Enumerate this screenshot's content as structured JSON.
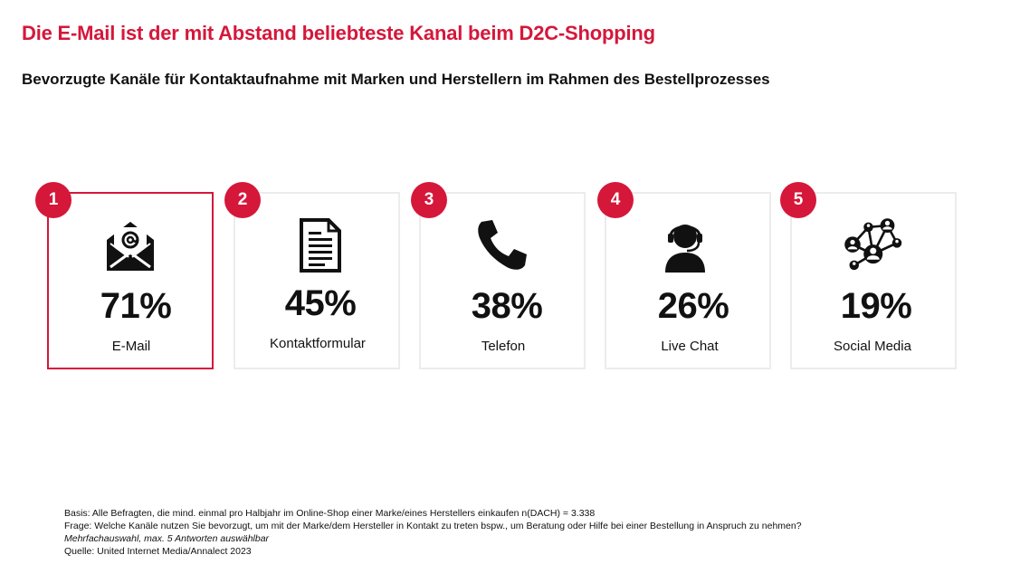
{
  "title": "Die E-Mail ist der mit Abstand beliebteste Kanal beim D2C-Shopping",
  "subtitle": "Bevorzugte Kanäle für Kontaktaufnahme mit Marken und Herstellern im Rahmen des Bestellprozesses",
  "colors": {
    "accent": "#d5173a",
    "card_border": "#ececec",
    "icon": "#111111"
  },
  "chart_data": {
    "type": "table",
    "title": "Bevorzugte Kanäle für Kontaktaufnahme mit Marken und Herstellern im Rahmen des Bestellprozesses",
    "categories": [
      "E-Mail",
      "Kontaktformular",
      "Telefon",
      "Live Chat",
      "Social Media"
    ],
    "values": [
      71,
      45,
      38,
      26,
      19
    ],
    "items": [
      {
        "rank": "1",
        "value_label": "71%",
        "label": "E-Mail",
        "icon": "email-icon",
        "highlighted": true
      },
      {
        "rank": "2",
        "value_label": "45%",
        "label": "Kontaktformular",
        "icon": "document-icon",
        "highlighted": false
      },
      {
        "rank": "3",
        "value_label": "38%",
        "label": "Telefon",
        "icon": "phone-icon",
        "highlighted": false
      },
      {
        "rank": "4",
        "value_label": "26%",
        "label": "Live Chat",
        "icon": "support-agent-icon",
        "highlighted": false
      },
      {
        "rank": "5",
        "value_label": "19%",
        "label": "Social Media",
        "icon": "social-network-icon",
        "highlighted": false
      }
    ]
  },
  "footnotes": {
    "basis": "Basis: Alle Befragten, die mind. einmal pro Halbjahr im Online-Shop einer Marke/eines Herstellers einkaufen n(DACH) = 3.338",
    "question": "Frage: Welche Kanäle nutzen Sie bevorzugt, um mit der Marke/dem Hersteller in Kontakt zu treten bspw., um Beratung oder Hilfe bei einer Bestellung in Anspruch zu nehmen?",
    "note": "Mehrfachauswahl, max. 5 Antworten auswählbar",
    "source": "Quelle: United Internet Media/Annalect 2023"
  }
}
